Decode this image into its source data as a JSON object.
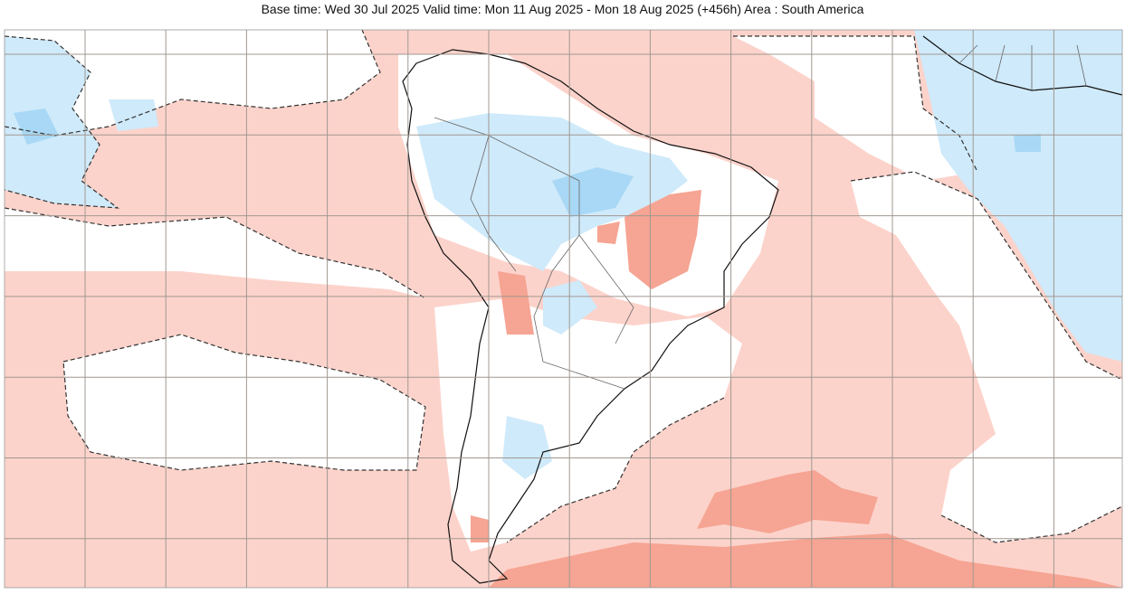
{
  "header": {
    "title": "Base time: Wed 30 Jul 2025 Valid time: Mon 11 Aug 2025 - Mon 18 Aug 2025 (+456h) Area : South America"
  }
}
